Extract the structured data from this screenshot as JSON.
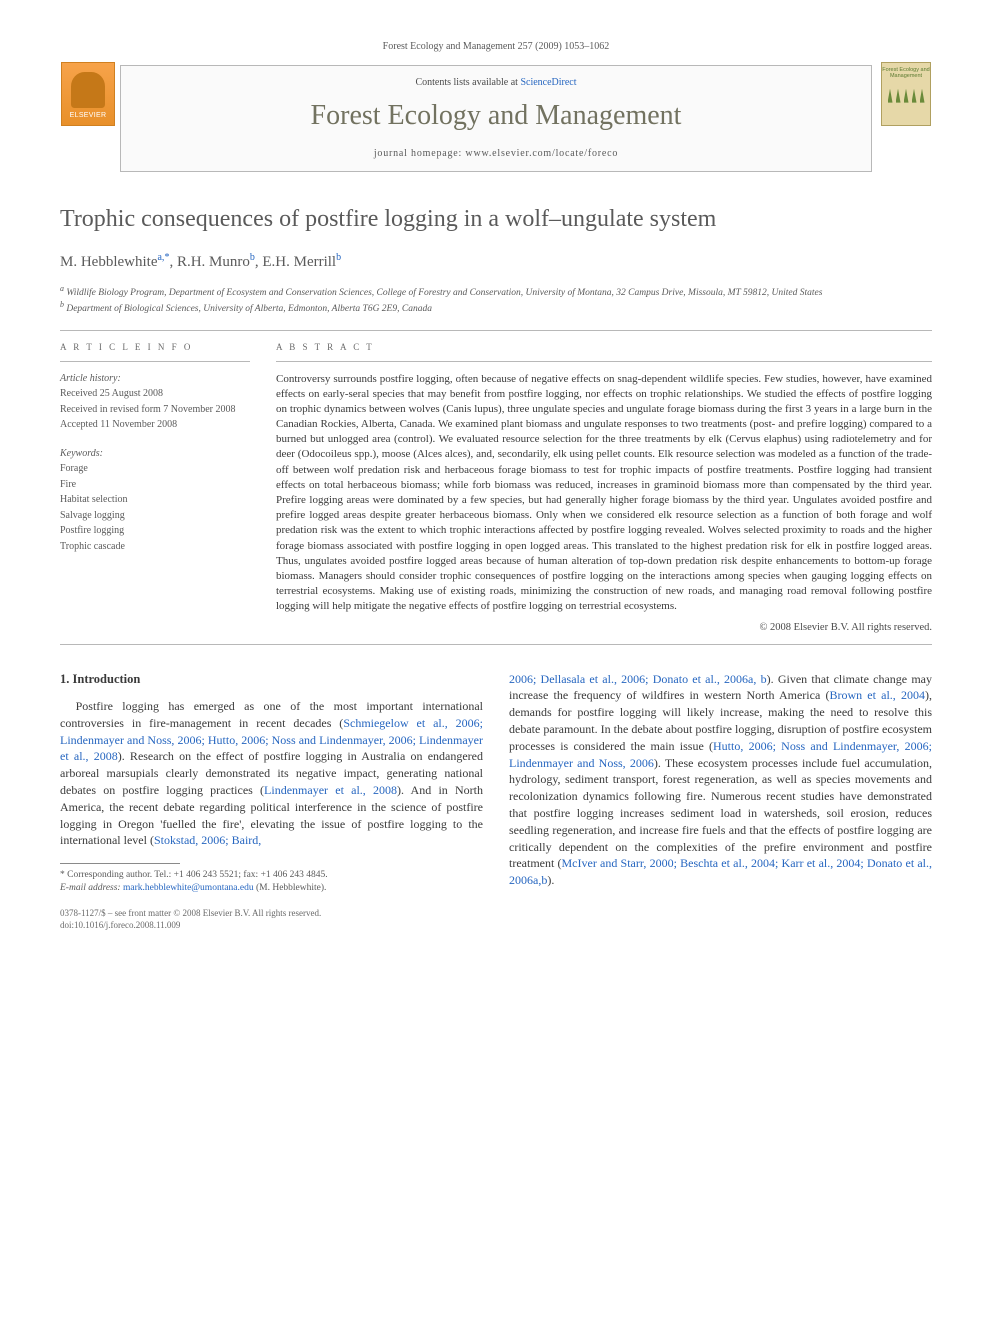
{
  "header": {
    "citation": "Forest Ecology and Management 257 (2009) 1053–1062",
    "contents_line_prefix": "Contents lists available at ",
    "contents_link": "ScienceDirect",
    "journal_title": "Forest Ecology and Management",
    "homepage_prefix": "journal homepage: ",
    "homepage_url": "www.elsevier.com/locate/foreco",
    "elsevier_label": "ELSEVIER",
    "cover_label": "Forest Ecology and Management"
  },
  "article": {
    "title": "Trophic consequences of postfire logging in a wolf–ungulate system",
    "authors_html": "M. Hebblewhite",
    "author_a_sup": "a,",
    "author_star": "*",
    "author2": ", R.H. Munro",
    "author2_sup": "b",
    "author3": ", E.H. Merrill",
    "author3_sup": "b",
    "affiliations": {
      "a": "Wildlife Biology Program, Department of Ecosystem and Conservation Sciences, College of Forestry and Conservation, University of Montana, 32 Campus Drive, Missoula, MT 59812, United States",
      "b": "Department of Biological Sciences, University of Alberta, Edmonton, Alberta T6G 2E9, Canada"
    }
  },
  "info": {
    "section_label": "A R T I C L E    I N F O",
    "history_label": "Article history:",
    "received": "Received 25 August 2008",
    "revised": "Received in revised form 7 November 2008",
    "accepted": "Accepted 11 November 2008",
    "keywords_label": "Keywords:",
    "keywords": [
      "Forage",
      "Fire",
      "Habitat selection",
      "Salvage logging",
      "Postfire logging",
      "Trophic cascade"
    ]
  },
  "abstract": {
    "label": "A B S T R A C T",
    "text": "Controversy surrounds postfire logging, often because of negative effects on snag-dependent wildlife species. Few studies, however, have examined effects on early-seral species that may benefit from postfire logging, nor effects on trophic relationships. We studied the effects of postfire logging on trophic dynamics between wolves (Canis lupus), three ungulate species and ungulate forage biomass during the first 3 years in a large burn in the Canadian Rockies, Alberta, Canada. We examined plant biomass and ungulate responses to two treatments (post- and prefire logging) compared to a burned but unlogged area (control). We evaluated resource selection for the three treatments by elk (Cervus elaphus) using radiotelemetry and for deer (Odocoileus spp.), moose (Alces alces), and, secondarily, elk using pellet counts. Elk resource selection was modeled as a function of the trade-off between wolf predation risk and herbaceous forage biomass to test for trophic impacts of postfire treatments. Postfire logging had transient effects on total herbaceous biomass; while forb biomass was reduced, increases in graminoid biomass more than compensated by the third year. Prefire logging areas were dominated by a few species, but had generally higher forage biomass by the third year. Ungulates avoided postfire and prefire logged areas despite greater herbaceous biomass. Only when we considered elk resource selection as a function of both forage and wolf predation risk was the extent to which trophic interactions affected by postfire logging revealed. Wolves selected proximity to roads and the higher forage biomass associated with postfire logging in open logged areas. This translated to the highest predation risk for elk in postfire logged areas. Thus, ungulates avoided postfire logged areas because of human alteration of top-down predation risk despite enhancements to bottom-up forage biomass. Managers should consider trophic consequences of postfire logging on the interactions among species when gauging logging effects on terrestrial ecosystems. Making use of existing roads, minimizing the construction of new roads, and managing road removal following postfire logging will help mitigate the negative effects of postfire logging on terrestrial ecosystems.",
    "copyright": "© 2008 Elsevier B.V. All rights reserved."
  },
  "body": {
    "heading": "1. Introduction",
    "col1_p1_a": "Postfire logging has emerged as one of the most important international controversies in fire-management in recent decades (",
    "col1_ref1": "Schmiegelow et al., 2006; Lindenmayer and Noss, 2006; Hutto, 2006; Noss and Lindenmayer, 2006; Lindenmayer et al., 2008",
    "col1_p1_b": "). Research on the effect of postfire logging in Australia on endangered arboreal marsupials clearly demonstrated its negative impact, generating national debates on postfire logging practices (",
    "col1_ref2": "Lindenmayer et al., 2008",
    "col1_p1_c": "). And in North America, the recent debate regarding political interference in the science of postfire logging in Oregon 'fuelled the fire', elevating the issue of postfire logging to the international level (",
    "col1_ref3": "Stokstad, 2006; Baird,",
    "col2_ref4": "2006; Dellasala et al., 2006; Donato et al., 2006a, b",
    "col2_p1_a": "). Given that climate change may increase the frequency of wildfires in western North America (",
    "col2_ref5": "Brown et al., 2004",
    "col2_p1_b": "), demands for postfire logging will likely increase, making the need to resolve this debate paramount. In the debate about postfire logging, disruption of postfire ecosystem processes is considered the main issue (",
    "col2_ref6": "Hutto, 2006; Noss and Lindenmayer, 2006; Lindenmayer and Noss, 2006",
    "col2_p1_c": "). These ecosystem processes include fuel accumulation, hydrology, sediment transport, forest regeneration, as well as species movements and recolonization dynamics following fire. Numerous recent studies have demonstrated that postfire logging increases sediment load in watersheds, soil erosion, reduces seedling regeneration, and increase fire fuels and that the effects of postfire logging are critically dependent on the complexities of the prefire environment and postfire treatment (",
    "col2_ref7": "McIver and Starr, 2000; Beschta et al., 2004; Karr et al., 2004; Donato et al., 2006a,b",
    "col2_p1_d": ")."
  },
  "footnote": {
    "corr": "* Corresponding author. Tel.: +1 406 243 5521; fax: +1 406 243 4845.",
    "email_label": "E-mail address: ",
    "email": "mark.hebblewhite@umontana.edu",
    "email_suffix": " (M. Hebblewhite)."
  },
  "bottom": {
    "issn": "0378-1127/$ – see front matter © 2008 Elsevier B.V. All rights reserved.",
    "doi": "doi:10.1016/j.foreco.2008.11.009"
  },
  "colors": {
    "link": "#2666c0",
    "text": "#3a3a3a",
    "muted": "#5a5a5a",
    "elsevier_orange": "#e8902a",
    "journal_title": "#727260"
  }
}
